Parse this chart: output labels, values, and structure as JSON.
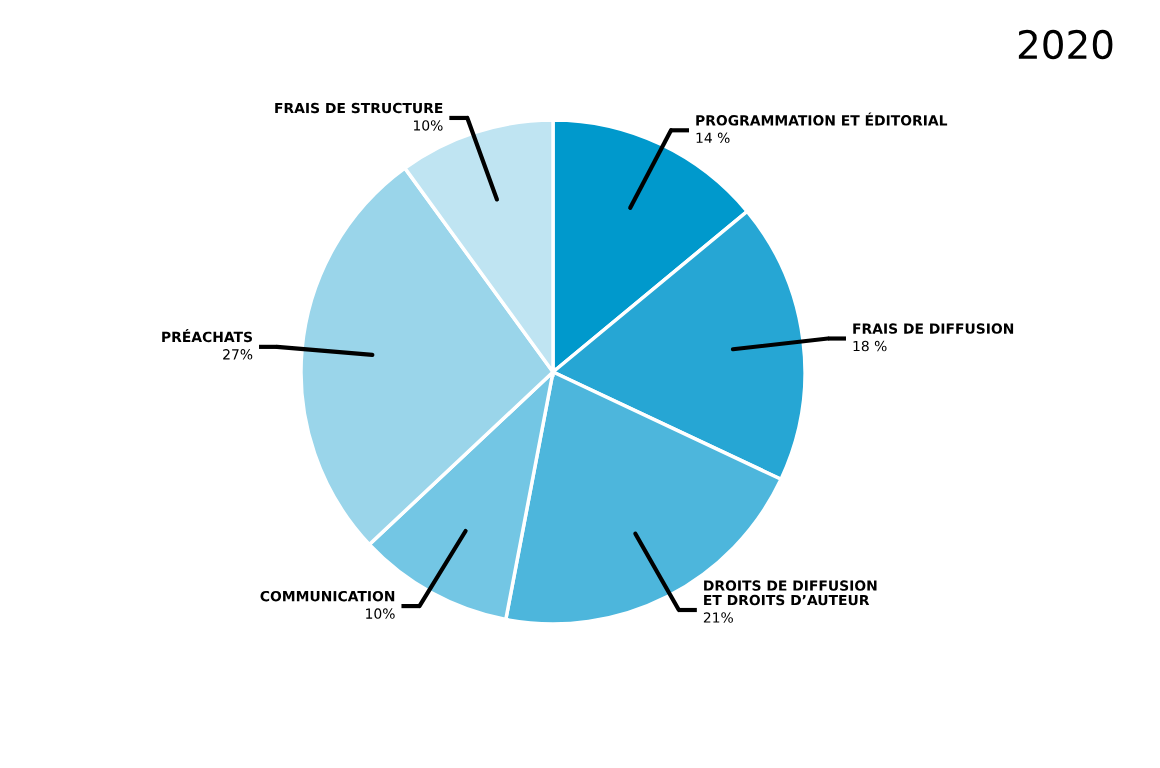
{
  "chart_data": {
    "type": "pie",
    "title": "2020",
    "categories": [
      "PROGRAMMATION ET ÉDITORIAL",
      "FRAIS DE DIFFUSION",
      "DROITS DE DIFFUSION\nET DROITS D’AUTEUR",
      "COMMUNICATION",
      "PRÉACHATS",
      "FRAIS DE STRUCTURE"
    ],
    "values": [
      14,
      18,
      21,
      10,
      27,
      10
    ],
    "value_labels": [
      "14 %",
      "18 %",
      "21%",
      "10%",
      "27%",
      "10%"
    ],
    "colors": [
      "#0099cc",
      "#26a6d4",
      "#4db6dc",
      "#73c6e4",
      "#9ad5ea",
      "#bfe4f2"
    ],
    "legend": false
  }
}
